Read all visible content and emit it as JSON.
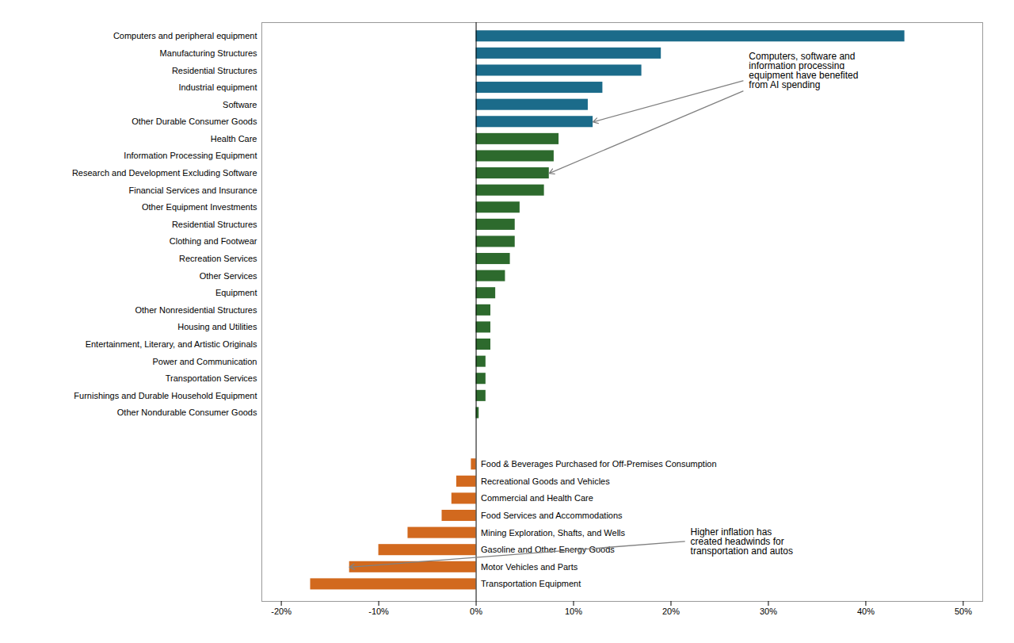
{
  "chart_data": {
    "type": "bar",
    "orientation": "horizontal",
    "categories": [
      "Computers and peripheral equipment",
      "Manufacturing Structures",
      "Residential Structures",
      "Industrial equipment",
      "Software",
      "Other Durable Consumer Goods",
      "Health Care",
      "Information Processing Equipment",
      "Research and Development Excluding Software",
      "Financial Services and Insurance",
      "Other Equipment Investments",
      "Residential Structures",
      "Clothing and Footwear",
      "Recreation Services",
      "Other Services",
      "Equipment",
      "Other Nonresidential Structures",
      "Housing and Utilities",
      "Entertainment, Literary, and Artistic Originals",
      "Power and Communication",
      "Transportation Services",
      "Furnishings and Durable Household Equipment",
      "Other Nondurable Consumer Goods",
      "Food & Beverages Purchased for Off-Premises Consumption",
      "Recreational Goods and Vehicles",
      "Commercial and Health Care",
      "Food Services and Accommodations",
      "Mining Exploration, Shafts, and Wells",
      "Gasoline and Other Energy Goods",
      "Motor Vehicles and Parts",
      "Transportation Equipment"
    ],
    "values": [
      44,
      19,
      17,
      13,
      11.5,
      12,
      8.5,
      8,
      7.5,
      7,
      4.5,
      4,
      4,
      3.5,
      3,
      2,
      1.5,
      1.5,
      1.5,
      1,
      1,
      1,
      0.3,
      -0.5,
      -2,
      -2.5,
      -3.5,
      -7,
      -10,
      -13,
      -17
    ],
    "colors": [
      "#1B6B8A",
      "#1B6B8A",
      "#1B6B8A",
      "#1B6B8A",
      "#1B6B8A",
      "#1B6B8A",
      "#2D6A2D",
      "#2D6A2D",
      "#2D6A2D",
      "#2D6A2D",
      "#2D6A2D",
      "#2D6A2D",
      "#2D6A2D",
      "#2D6A2D",
      "#2D6A2D",
      "#2D6A2D",
      "#2D6A2D",
      "#2D6A2D",
      "#2D6A2D",
      "#2D6A2D",
      "#2D6A2D",
      "#2D6A2D",
      "#2D6A2D",
      "#D2691E",
      "#D2691E",
      "#D2691E",
      "#D2691E",
      "#D2691E",
      "#D2691E",
      "#D2691E",
      "#D2691E"
    ],
    "xlim": [
      -22,
      52
    ],
    "xticks": [
      {
        "value": -20,
        "label": "-20%"
      },
      {
        "value": -10,
        "label": "-10%"
      },
      {
        "value": 0,
        "label": "0%"
      },
      {
        "value": 10,
        "label": "10%"
      },
      {
        "value": 20,
        "label": "20%"
      },
      {
        "value": 30,
        "label": "30%"
      },
      {
        "value": 40,
        "label": "40%"
      },
      {
        "value": 50,
        "label": "50%"
      }
    ],
    "annotations": [
      "Computers, software and\ninformation processing\nequipment have benefited\nfrom AI spending",
      "Higher inflation has\ncreated headwinds for\ntransportation and autos"
    ],
    "grid": false
  }
}
